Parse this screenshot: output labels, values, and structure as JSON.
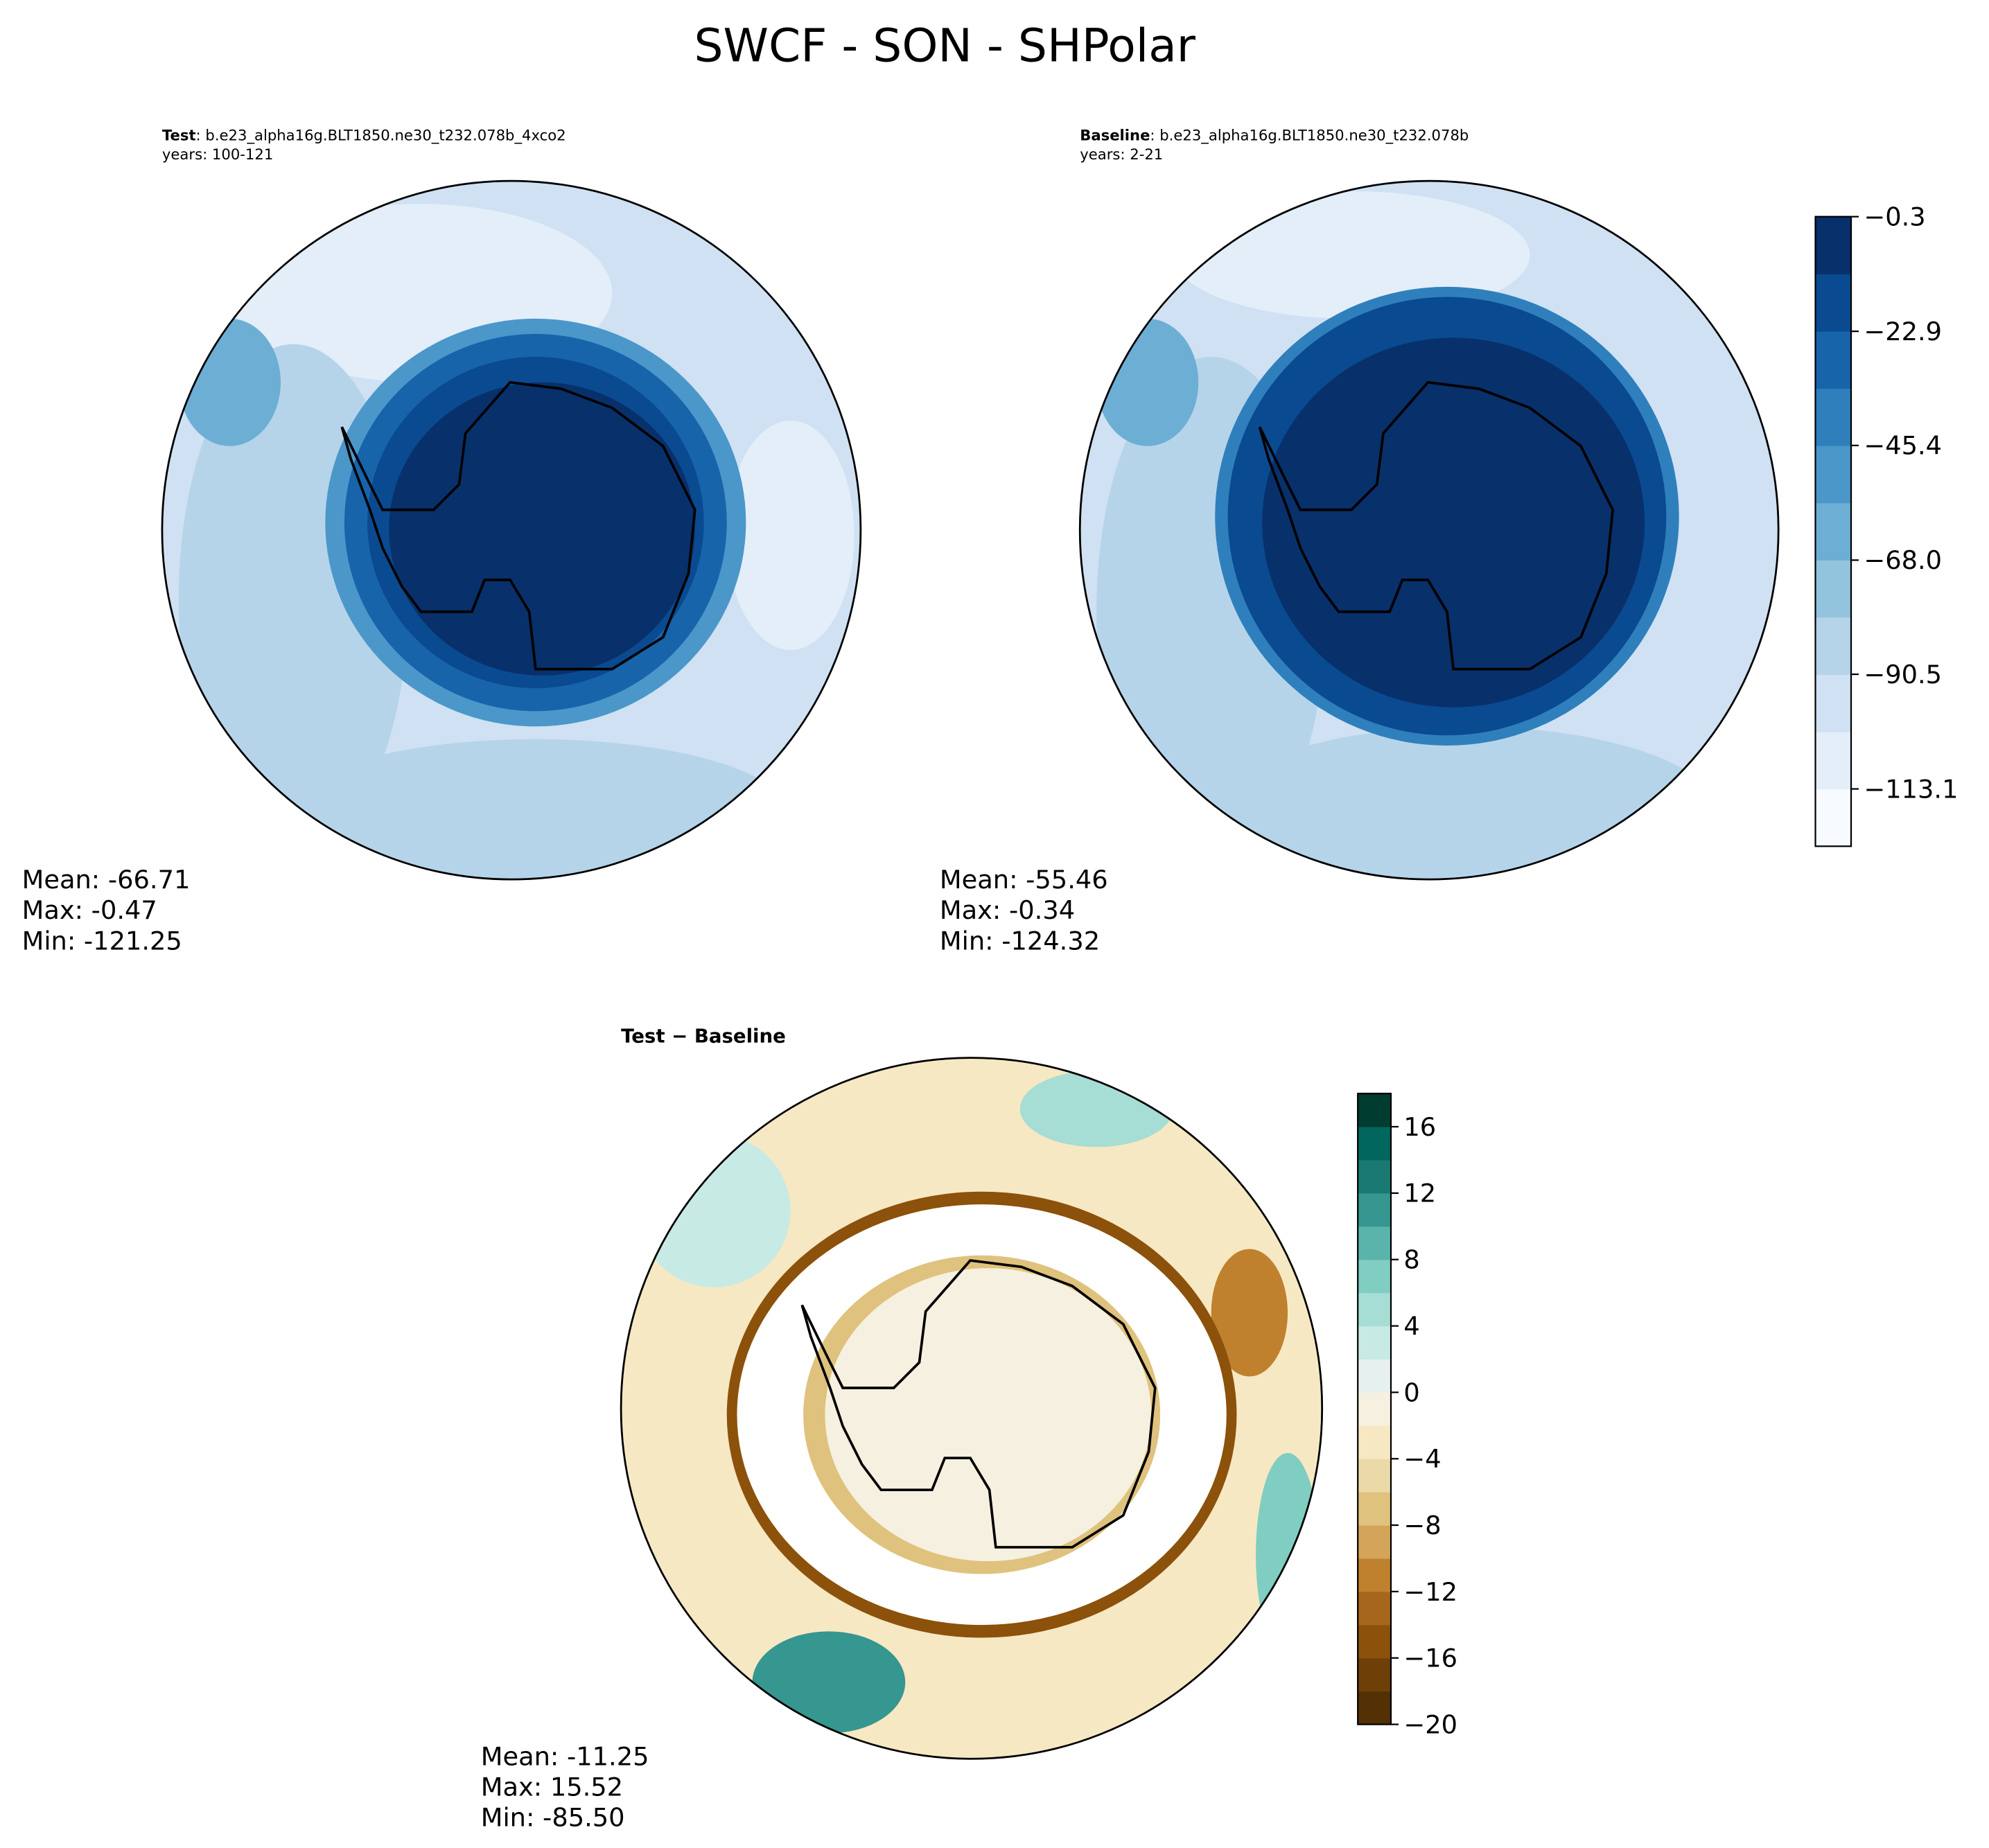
{
  "chart_data": {
    "type": "polar-map",
    "title": "SWCF - SON - SHPolar",
    "panels": [
      {
        "label": "Test",
        "subtitle": ": b.e23_alpha16g.BLT1850.ne30_t232.078b_4xco2",
        "years": "years: 100-121",
        "stats": [
          "Mean: -66.71",
          "Max: -0.47",
          "Min: -121.25"
        ]
      },
      {
        "label": "Baseline",
        "subtitle": ": b.e23_alpha16g.BLT1850.ne30_t232.078b",
        "years": "years: 2-21",
        "stats": [
          "Mean: -55.46",
          "Max: -0.34",
          "Min: -124.32"
        ]
      },
      {
        "label": "Test − Baseline",
        "stats": [
          "Mean: -11.25",
          "Max: 15.52",
          "Min: -85.50"
        ]
      }
    ],
    "colorbars": [
      {
        "ylim": [
          -124.4,
          -0.3
        ],
        "yticks": [
          {
            "value": -113.1,
            "label": "−113.1"
          },
          {
            "value": -90.5,
            "label": "−90.5"
          },
          {
            "value": -68.0,
            "label": "−68.0"
          },
          {
            "value": -45.4,
            "label": "−45.4"
          },
          {
            "value": -22.9,
            "label": "−22.9"
          },
          {
            "value": -0.3,
            "label": "−0.3"
          }
        ],
        "colors": [
          "#f7fbff",
          "#e3eef9",
          "#cfe1f2",
          "#b5d4e9",
          "#93c4de",
          "#6daed5",
          "#4b97c9",
          "#2f7fbc",
          "#1764ab",
          "#0a4a90",
          "#08306b"
        ]
      },
      {
        "ylim": [
          -20,
          18
        ],
        "yticks": [
          {
            "value": -20,
            "label": "−20"
          },
          {
            "value": -16,
            "label": "−16"
          },
          {
            "value": -12,
            "label": "−12"
          },
          {
            "value": -8,
            "label": "−8"
          },
          {
            "value": -4,
            "label": "−4"
          },
          0,
          4,
          8,
          12,
          16
        ],
        "colors": [
          "#543005",
          "#6f3f08",
          "#8c510a",
          "#a6661b",
          "#bf812d",
          "#d3a45a",
          "#dfc27d",
          "#ecd9a8",
          "#f6e8c3",
          "#f5f0e0",
          "#e6f0ee",
          "#c7eae5",
          "#a6ddd4",
          "#80cdc1",
          "#5ab4ac",
          "#35978f",
          "#1a7a72",
          "#01665e",
          "#003c30"
        ]
      }
    ]
  }
}
